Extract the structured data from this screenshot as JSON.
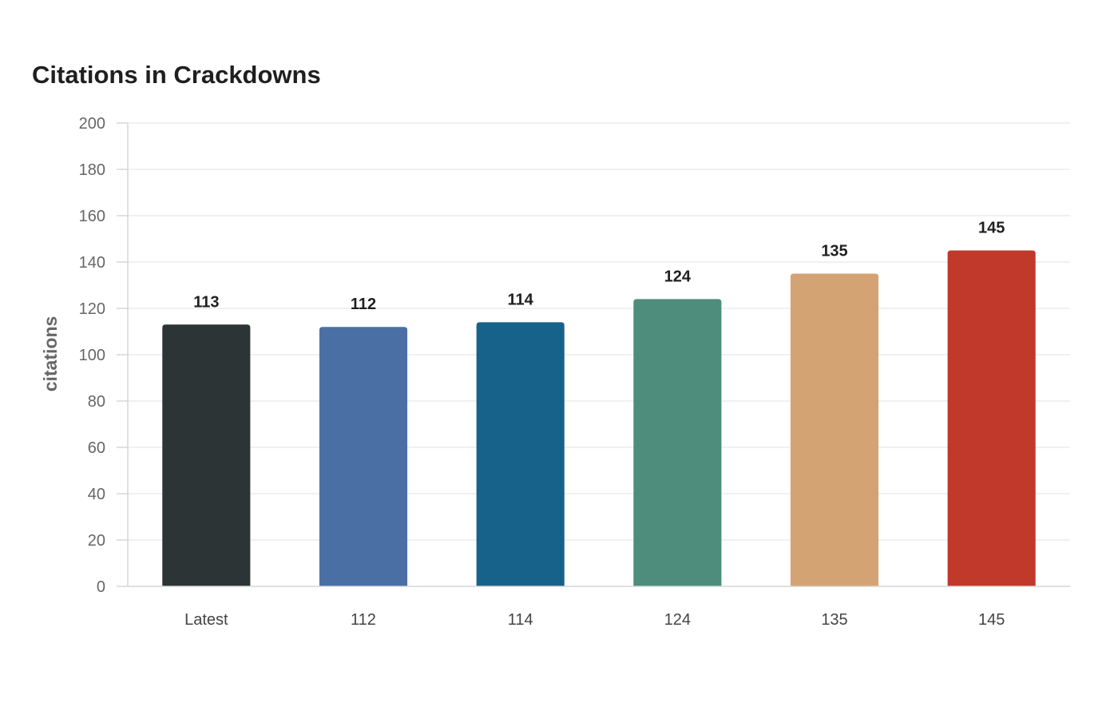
{
  "chart_data": {
    "type": "bar",
    "title": "Citations in Crackdowns",
    "xlabel": "",
    "ylabel": "citations",
    "categories": [
      "Latest",
      "112",
      "114",
      "124",
      "135",
      "145"
    ],
    "values": [
      113,
      112,
      114,
      124,
      135,
      145
    ],
    "colors": [
      "#2d3436",
      "#4a6fa5",
      "#17628a",
      "#4e8c7b",
      "#d4a373",
      "#c0392b"
    ],
    "ylim": [
      0,
      200
    ],
    "yticks": [
      0,
      20,
      40,
      60,
      80,
      100,
      120,
      140,
      160,
      180,
      200
    ],
    "grid": true,
    "gridColor": "#ececec",
    "axisColor": "#d6d6d6",
    "show_value_labels": true
  }
}
